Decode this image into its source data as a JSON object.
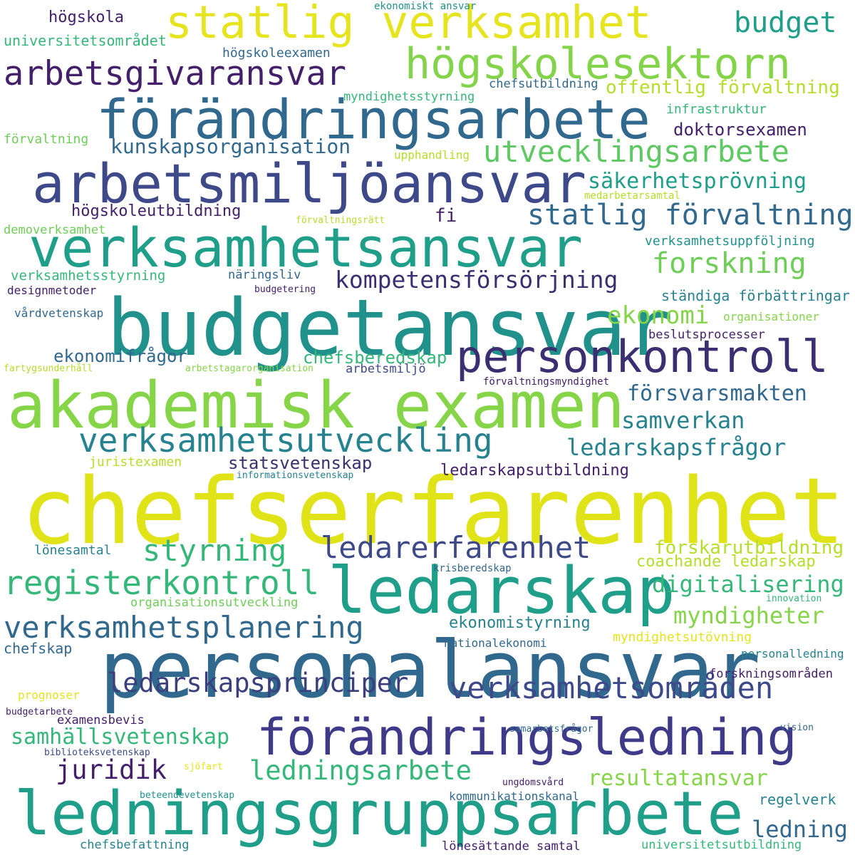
{
  "palette": {
    "dark_purple": "#44206b",
    "indigo": "#3e4989",
    "blue": "#31688e",
    "teal": "#26828e",
    "green_teal": "#1f9e89",
    "green": "#35b779",
    "light_green": "#6ece58",
    "lime": "#b5de2b",
    "yellow": "#e6e41f"
  },
  "words": [
    {
      "text": "chefserfarenhet",
      "color": "#dfe318"
    },
    {
      "text": "personalansvar",
      "color": "#31688e"
    },
    {
      "text": "budgetansvar",
      "color": "#21918c"
    },
    {
      "text": "akademisk examen",
      "color": "#86d549"
    },
    {
      "text": "ledningsgruppsarbete",
      "color": "#1f9e89"
    },
    {
      "text": "förändringsarbete",
      "color": "#31688e"
    },
    {
      "text": "verksamhetsansvar",
      "color": "#1f9e89"
    },
    {
      "text": "arbetsmiljöansvar",
      "color": "#3e4989"
    },
    {
      "text": "statlig verksamhet",
      "color": "#e6e41f"
    },
    {
      "text": "ledarskap",
      "color": "#1f9e89"
    },
    {
      "text": "förändringsledning",
      "color": "#3e3a89"
    },
    {
      "text": "högskolesektorn",
      "color": "#84d44b"
    },
    {
      "text": "personkontroll",
      "color": "#3b2f72"
    },
    {
      "text": "arbetsgivaransvar",
      "color": "#44206b"
    },
    {
      "text": "verksamhetsutveckling",
      "color": "#26828e"
    },
    {
      "text": "registerkontroll",
      "color": "#35b779"
    },
    {
      "text": "utvecklingsarbete",
      "color": "#5ec962"
    },
    {
      "text": "ledarerfarenhet",
      "color": "#3e4989"
    },
    {
      "text": "verksamhetsplanering",
      "color": "#31688e"
    },
    {
      "text": "verksamhetsområden",
      "color": "#3e4989"
    },
    {
      "text": "statlig förvaltning",
      "color": "#31688e"
    },
    {
      "text": "styrning",
      "color": "#35b779"
    },
    {
      "text": "ledarskapsprinciper",
      "color": "#3b3f7e"
    },
    {
      "text": "ledningsarbete",
      "color": "#35b779"
    },
    {
      "text": "budget",
      "color": "#1f9e89"
    },
    {
      "text": "forskning",
      "color": "#6ece58"
    },
    {
      "text": "kompetensförsörjning",
      "color": "#3b2f72"
    },
    {
      "text": "kunskapsorganisation",
      "color": "#31688e"
    },
    {
      "text": "ledarskapsfrågor",
      "color": "#26828e"
    },
    {
      "text": "säkerhetsprövning",
      "color": "#1f9e89"
    },
    {
      "text": "samhällsvetenskap",
      "color": "#35b779"
    },
    {
      "text": "juridik",
      "color": "#44206b"
    },
    {
      "text": "resultatansvar",
      "color": "#86d549"
    },
    {
      "text": "offentlig förvaltning",
      "color": "#b5de2b"
    },
    {
      "text": "ekonomi",
      "color": "#86d549"
    },
    {
      "text": "digitalisering",
      "color": "#35b779"
    },
    {
      "text": "myndigheter",
      "color": "#86d549"
    },
    {
      "text": "försvarsmakten",
      "color": "#31688e"
    },
    {
      "text": "samverkan",
      "color": "#26828e"
    },
    {
      "text": "ledning",
      "color": "#31688e"
    },
    {
      "text": "forskarutbildning",
      "color": "#b5de2b"
    },
    {
      "text": "coachande ledarskap",
      "color": "#b5de2b"
    },
    {
      "text": "doktorsexamen",
      "color": "#44206b"
    },
    {
      "text": "ekonomifrågor",
      "color": "#31688e"
    },
    {
      "text": "chefsberedskap",
      "color": "#35b779"
    },
    {
      "text": "statsvetenskap",
      "color": "#3b2f72"
    },
    {
      "text": "ledarskapsutbildning",
      "color": "#44206b"
    },
    {
      "text": "högskoleutbildning",
      "color": "#44206b"
    },
    {
      "text": "fi",
      "color": "#44206b"
    },
    {
      "text": "ekonomistyrning",
      "color": "#26828e"
    },
    {
      "text": "regelverk",
      "color": "#26828e"
    },
    {
      "text": "högskola",
      "color": "#44206b"
    },
    {
      "text": "universitetsområdet",
      "color": "#35b779"
    },
    {
      "text": "högskoleexamen",
      "color": "#31688e"
    },
    {
      "text": "ekonomiskt ansvar",
      "color": "#21918c"
    },
    {
      "text": "chefsutbildning",
      "color": "#31688e"
    },
    {
      "text": "myndighetsstyrning",
      "color": "#35b779"
    },
    {
      "text": "infrastruktur",
      "color": "#35b779"
    },
    {
      "text": "förvaltning",
      "color": "#6ece58"
    },
    {
      "text": "upphandling",
      "color": "#b5de2b"
    },
    {
      "text": "medarbetarsamtal",
      "color": "#b5de2b"
    },
    {
      "text": "förvaltningsrätt",
      "color": "#b5de2b"
    },
    {
      "text": "demoverksamhet",
      "color": "#6ece58"
    },
    {
      "text": "verksamhetsuppföljning",
      "color": "#21918c"
    },
    {
      "text": "näringsliv",
      "color": "#31688e"
    },
    {
      "text": "verksamhetsstyrning",
      "color": "#35b779"
    },
    {
      "text": "designmetoder",
      "color": "#44206b"
    },
    {
      "text": "budgetering",
      "color": "#44206b"
    },
    {
      "text": "ständiga förbättringar",
      "color": "#26828e"
    },
    {
      "text": "vårdvetenskap",
      "color": "#31688e"
    },
    {
      "text": "organisationer",
      "color": "#86d549"
    },
    {
      "text": "beslutsprocesser",
      "color": "#44206b"
    },
    {
      "text": "fartygsunderhåll",
      "color": "#b5de2b"
    },
    {
      "text": "arbetstagarorganisation",
      "color": "#86d549"
    },
    {
      "text": "arbetsmiljö",
      "color": "#3e4989"
    },
    {
      "text": "förvaltningsmyndighet",
      "color": "#44206b"
    },
    {
      "text": "juristexamen",
      "color": "#b5de2b"
    },
    {
      "text": "informationsvetenskap",
      "color": "#26828e"
    },
    {
      "text": "lönesamtal",
      "color": "#26828e"
    },
    {
      "text": "krisberedskap",
      "color": "#31688e"
    },
    {
      "text": "organisationsutveckling",
      "color": "#6ece58"
    },
    {
      "text": "innovation",
      "color": "#35b779"
    },
    {
      "text": "chefskap",
      "color": "#31688e"
    },
    {
      "text": "nationalekonomi",
      "color": "#31688e"
    },
    {
      "text": "myndighetsutövning",
      "color": "#e6e41f"
    },
    {
      "text": "personalledning",
      "color": "#26828e"
    },
    {
      "text": "forskningsområden",
      "color": "#44206b"
    },
    {
      "text": "prognoser",
      "color": "#e6e41f"
    },
    {
      "text": "budgetarbete",
      "color": "#44206b"
    },
    {
      "text": "examensbevis",
      "color": "#44206b"
    },
    {
      "text": "samarbetsfrågor",
      "color": "#31688e"
    },
    {
      "text": "vision",
      "color": "#31688e"
    },
    {
      "text": "biblioteksvetenskap",
      "color": "#3e4989"
    },
    {
      "text": "sjöfart",
      "color": "#e6e41f"
    },
    {
      "text": "ungdomsvård",
      "color": "#44206b"
    },
    {
      "text": "beteendevetenskap",
      "color": "#21918c"
    },
    {
      "text": "kommunikationskanal",
      "color": "#31688e"
    },
    {
      "text": "chefsbefattning",
      "color": "#26828e"
    },
    {
      "text": "lönesättande samtal",
      "color": "#44206b"
    },
    {
      "text": "universitetsutbildning",
      "color": "#35b779"
    }
  ]
}
